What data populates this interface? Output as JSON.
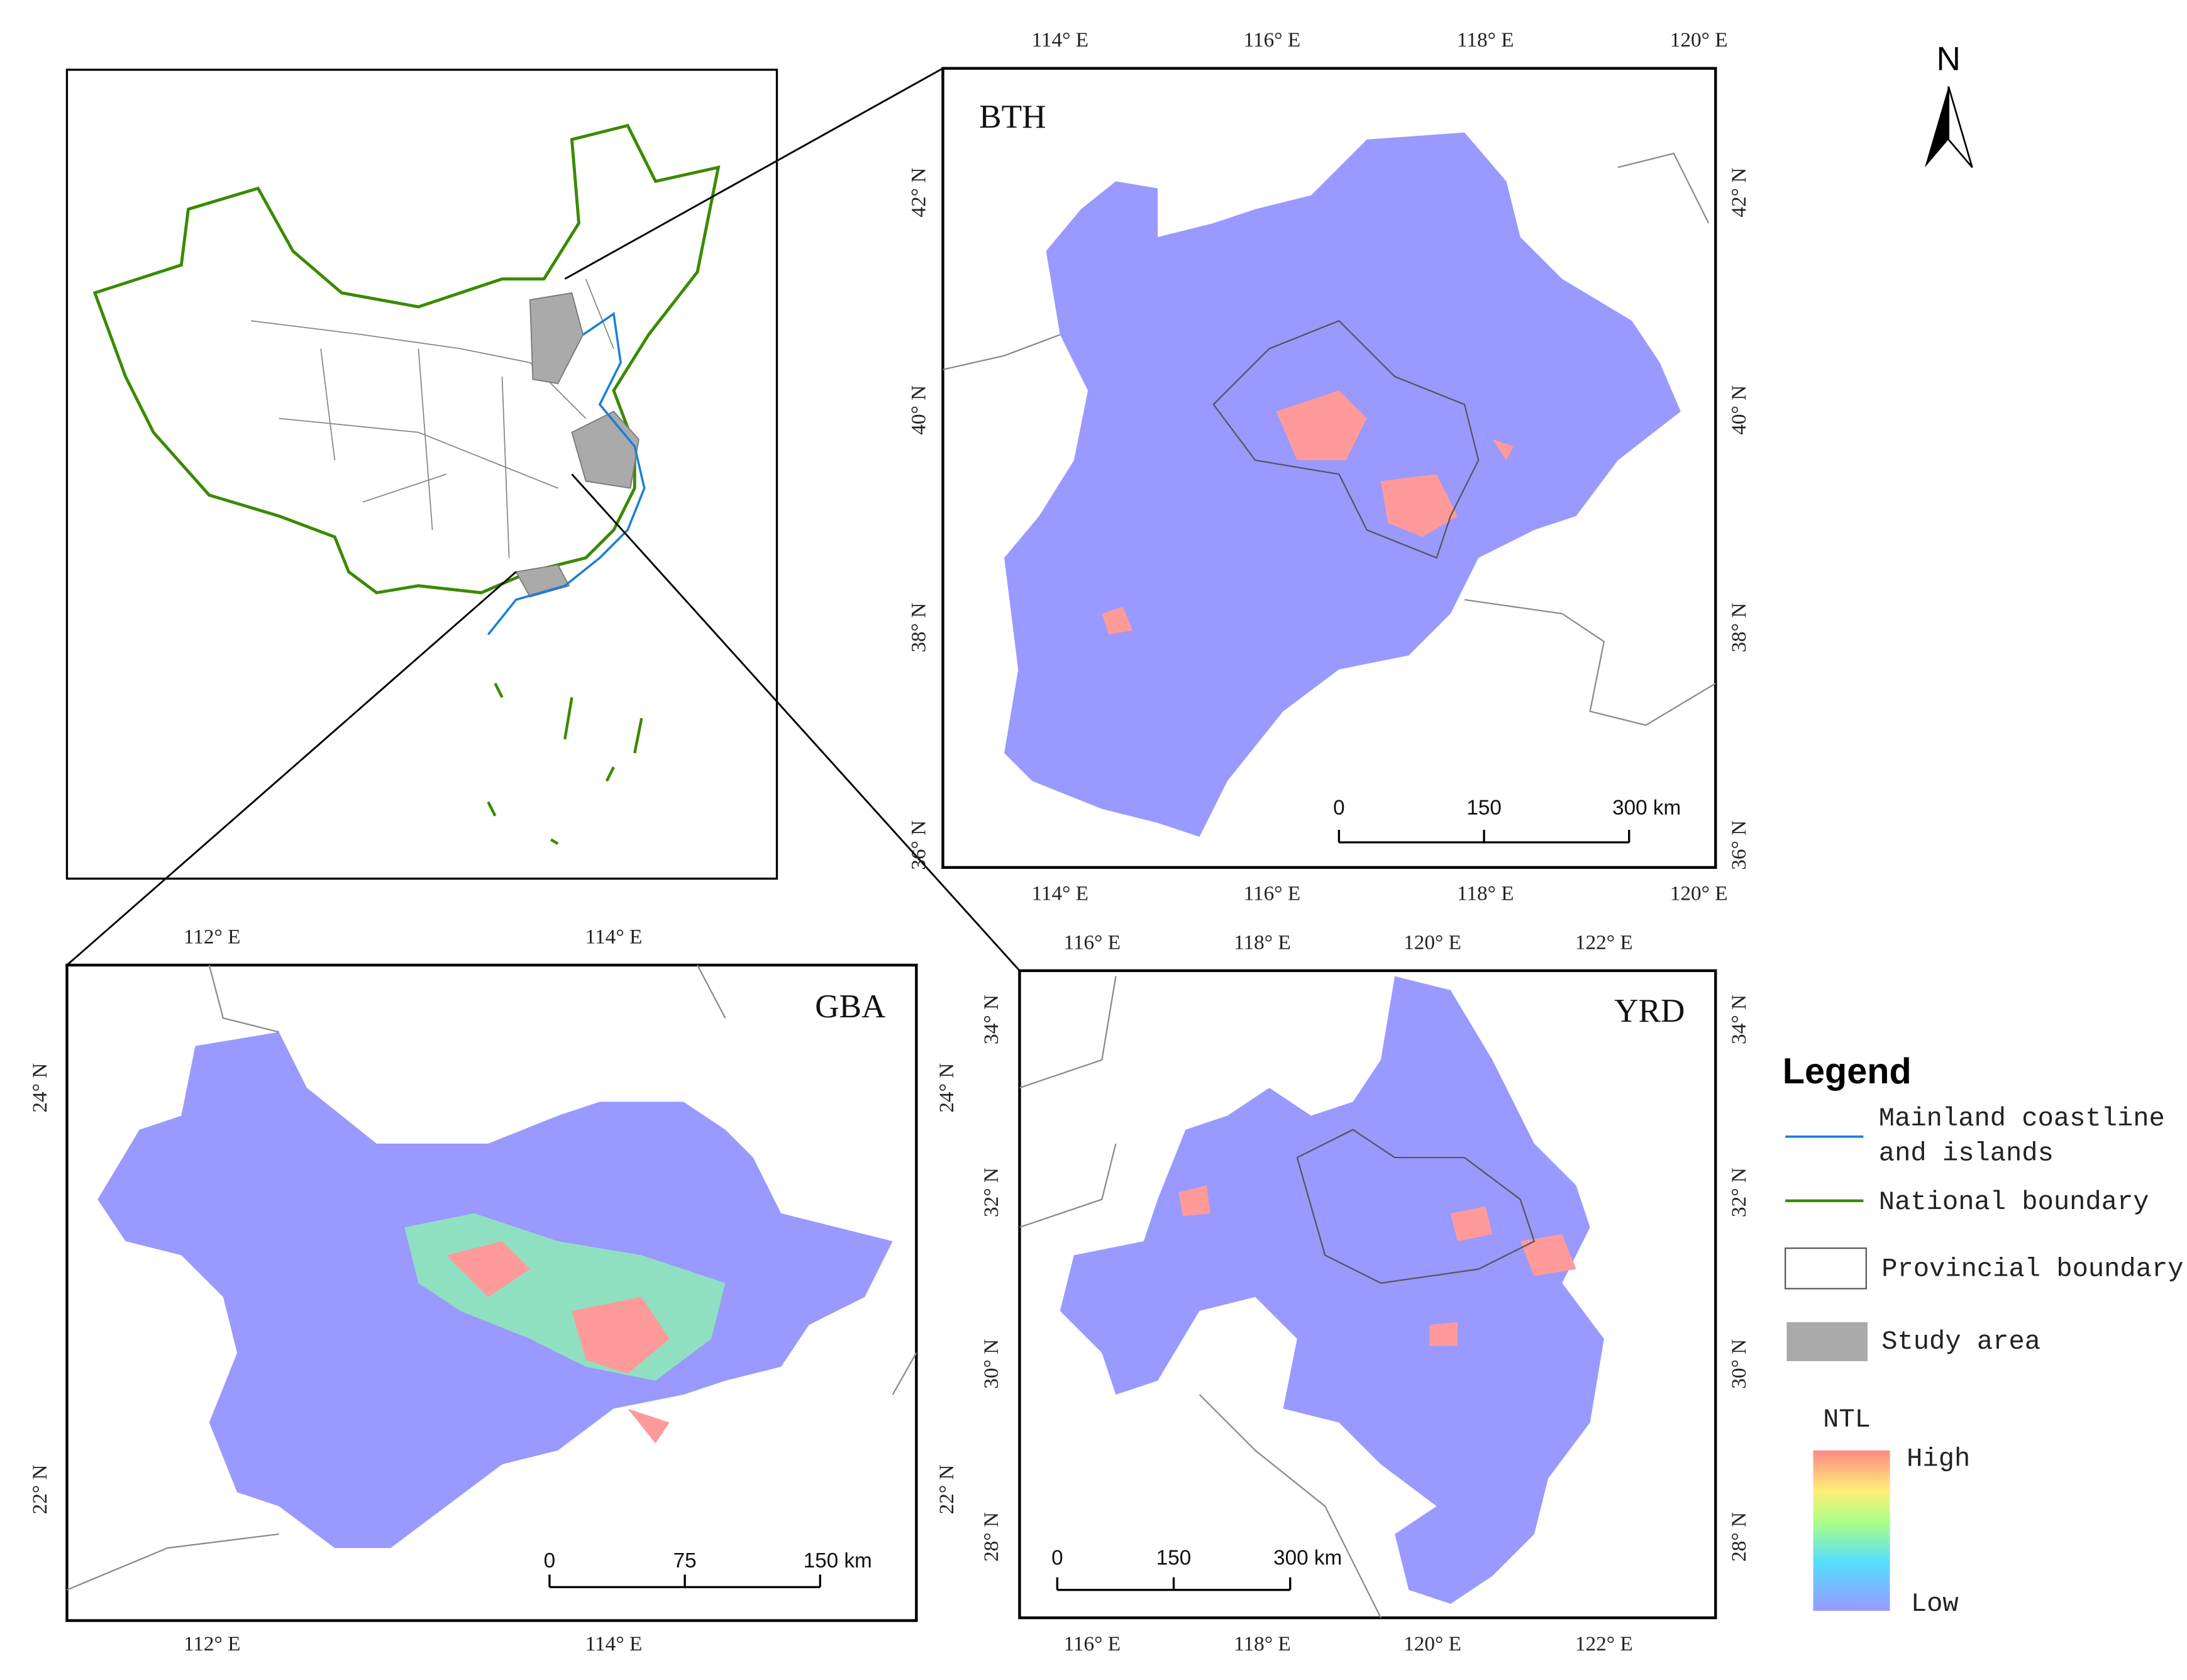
{
  "north_arrow": "N",
  "panels": [
    {
      "label": "BTH",
      "lon_ticks": [
        "114° E",
        "116° E",
        "118° E",
        "120° E"
      ],
      "lat_ticks": [
        "42° N",
        "40° N",
        "38° N",
        "36° N"
      ],
      "scale_bar": [
        "0",
        "150",
        "300 km"
      ]
    },
    {
      "label": "GBA",
      "lon_ticks": [
        "112° E",
        "114° E"
      ],
      "lat_ticks": [
        "24° N",
        "22° N"
      ],
      "scale_bar": [
        "0",
        "75",
        "150 km"
      ]
    },
    {
      "label": "YRD",
      "lon_ticks": [
        "116° E",
        "118° E",
        "120° E",
        "122° E"
      ],
      "lat_ticks": [
        "34° N",
        "32° N",
        "30° N",
        "28° N"
      ],
      "scale_bar": [
        "0",
        "150",
        "300 km"
      ]
    }
  ],
  "legend": {
    "title": "Legend",
    "coastline": [
      "Mainland coastline",
      "and islands"
    ],
    "national": "National boundary",
    "provincial": "Provincial boundary",
    "study_area": "Study area",
    "ntl_title": "NTL",
    "high": "High",
    "low": "Low"
  }
}
